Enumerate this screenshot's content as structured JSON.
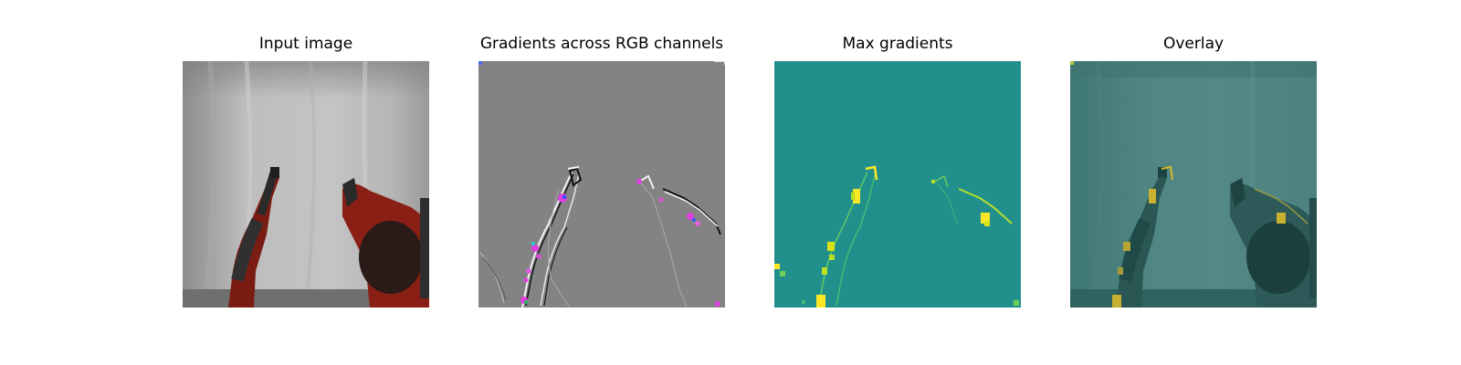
{
  "figure": {
    "panels": [
      {
        "title": "Input image",
        "image": "robot-arms-scene"
      },
      {
        "title": "Gradients across RGB channels",
        "image": "rgb-gradient-map"
      },
      {
        "title": "Max gradients",
        "image": "max-gradient-heatmap"
      },
      {
        "title": "Overlay",
        "image": "gradient-overlay"
      }
    ]
  }
}
